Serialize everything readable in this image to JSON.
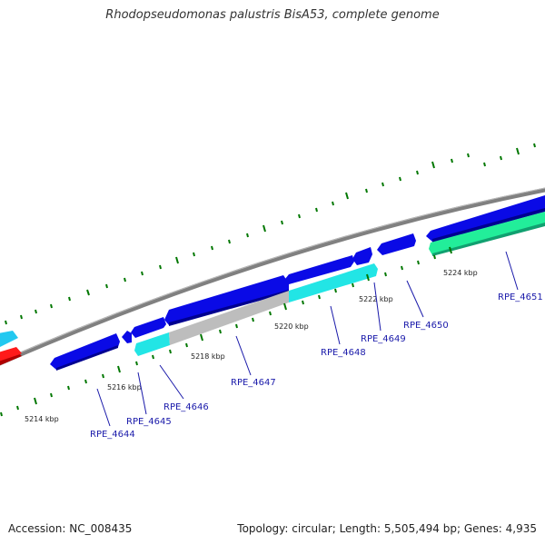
{
  "title": "Rhodopseudomonas palustris BisA53, complete genome",
  "footer": {
    "accession_label": "Accession:",
    "accession": "NC_008435",
    "topology_label": "Topology:",
    "topology": "circular",
    "length_label": "Length:",
    "length": "5,505,494 bp",
    "genes_label": "Genes:",
    "genes": "4,935"
  },
  "colors": {
    "backbone": "#808080",
    "forward_cds": "#0a0ae6",
    "reverse_cds": "#22e5e5",
    "pseudogene": "#bdbdbd",
    "rna": "#22ee9a",
    "other": "#ff1a1a",
    "tick": "#007700",
    "label": "#1a1aaa"
  },
  "scale_labels": [
    "5214 kbp",
    "5216 kbp",
    "5218 kbp",
    "5220 kbp",
    "5222 kbp",
    "5224 kbp"
  ],
  "gene_labels": [
    "RPE_4644",
    "RPE_4645",
    "RPE_4646",
    "RPE_4647",
    "RPE_4648",
    "RPE_4649",
    "RPE_4650",
    "RPE_4651"
  ]
}
